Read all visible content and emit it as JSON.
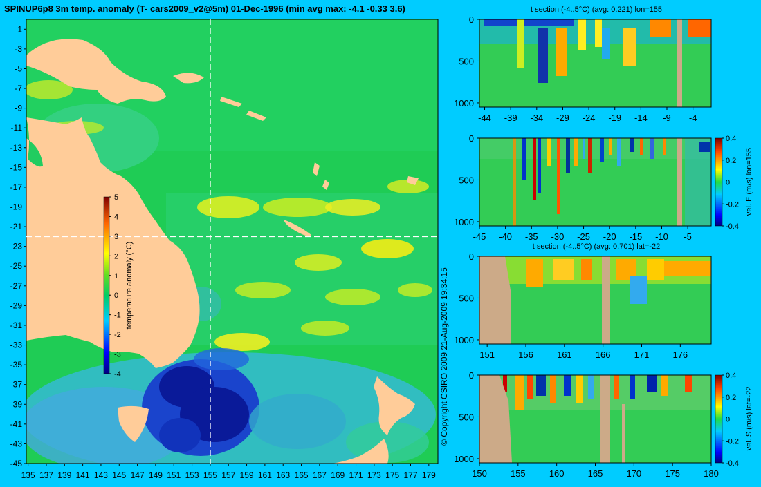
{
  "page": {
    "main_title": "SPINUP6p8 3m temp. anomaly (T- cars2009_v2@5m) 01-Dec-1996 (min avg max: -4.1 -0.33 3.6)",
    "copyright": "© Copyright CSIRO 2009   21-Aug-2009 19:34:15"
  },
  "colors": {
    "background": "#00ccff",
    "land": "#ffcc99",
    "section_land": "#ccaa88",
    "crosshair": "#ffffff"
  },
  "chart_data": [
    {
      "id": "map",
      "type": "heatmap",
      "title": "SPINUP6p8 3m temp. anomaly (T- cars2009_v2@5m) 01-Dec-1996 (min avg max: -4.1 -0.33 3.6)",
      "x_ticks": [
        "135",
        "137",
        "139",
        "141",
        "143",
        "145",
        "147",
        "149",
        "151",
        "153",
        "155",
        "157",
        "159",
        "161",
        "163",
        "165",
        "167",
        "169",
        "171",
        "173",
        "175",
        "177",
        "179"
      ],
      "y_ticks": [
        "-1",
        "-3",
        "-5",
        "-7",
        "-9",
        "-11",
        "-13",
        "-15",
        "-17",
        "-19",
        "-21",
        "-23",
        "-25",
        "-27",
        "-29",
        "-31",
        "-33",
        "-35",
        "-37",
        "-39",
        "-41",
        "-43",
        "-45"
      ],
      "xlim": [
        134.8,
        180
      ],
      "ylim": [
        -45,
        0
      ],
      "crosshair": {
        "lon": 155,
        "lat": -22
      },
      "colorbar": {
        "label": "temperature anomaly (°C)",
        "ticks": [
          "5",
          "4",
          "3",
          "2",
          "1",
          "0",
          "-1",
          "-2",
          "-3",
          "-4"
        ],
        "range": [
          -4,
          5
        ]
      },
      "min": -4.1,
      "avg": -0.33,
      "max": 3.6
    },
    {
      "id": "section-lon155-t",
      "type": "heatmap",
      "title": "t section (-4..5°C) (avg: 0.221) lon=155",
      "x_ticks": [
        "-44",
        "-39",
        "-34",
        "-29",
        "-24",
        "-19",
        "-14",
        "-9",
        "-4"
      ],
      "y_ticks": [
        "0",
        "500",
        "1000"
      ],
      "xlim": [
        -45,
        -0.5
      ],
      "ylim": [
        1050,
        0
      ]
    },
    {
      "id": "section-lon155-velE",
      "type": "heatmap",
      "title": "",
      "x_ticks": [
        "-45",
        "-40",
        "-35",
        "-30",
        "-25",
        "-20",
        "-15",
        "-10",
        "-5"
      ],
      "y_ticks": [
        "0",
        "500",
        "1000"
      ],
      "xlim": [
        -45,
        -0.5
      ],
      "ylim": [
        1050,
        0
      ],
      "colorbar": {
        "label": "vel. E (m/s) lon=155",
        "ticks": [
          "0.4",
          "0.2",
          "0",
          "-0.2",
          "-0.4"
        ],
        "range": [
          -0.4,
          0.4
        ]
      }
    },
    {
      "id": "section-lat22-t",
      "type": "heatmap",
      "title": "t section (-4..5°C) (avg: 0.701) lat=-22",
      "x_ticks": [
        "151",
        "156",
        "161",
        "166",
        "171",
        "176"
      ],
      "y_ticks": [
        "0",
        "500",
        "1000"
      ],
      "xlim": [
        150,
        180
      ],
      "ylim": [
        1050,
        0
      ]
    },
    {
      "id": "section-lat22-velS",
      "type": "heatmap",
      "title": "",
      "x_ticks": [
        "150",
        "155",
        "160",
        "165",
        "170",
        "175",
        "180"
      ],
      "y_ticks": [
        "0",
        "500",
        "1000"
      ],
      "xlim": [
        150,
        180
      ],
      "ylim": [
        1050,
        0
      ],
      "colorbar": {
        "label": "vel. S (m/s) lat=-22",
        "ticks": [
          "0.4",
          "0.2",
          "0",
          "-0.2",
          "-0.4"
        ],
        "range": [
          -0.4,
          0.4
        ]
      }
    }
  ]
}
